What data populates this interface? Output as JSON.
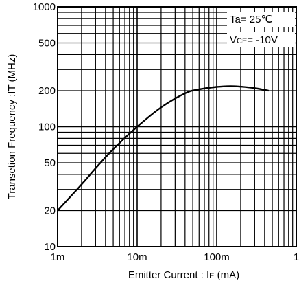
{
  "chart_data": {
    "type": "line",
    "xlabel": "Emitter Current : I",
    "xlabel_sub": "E",
    "xlabel_unit": " (mA)",
    "ylabel": "Transetion Frequency :fT (MHz)",
    "xscale": "log",
    "yscale": "log",
    "xlim_mA": [
      1,
      1000
    ],
    "ylim": [
      10,
      1000
    ],
    "grid": true,
    "x_ticks": [
      {
        "value": 1,
        "label": "1m"
      },
      {
        "value": 10,
        "label": "10m"
      },
      {
        "value": 100,
        "label": "100m"
      },
      {
        "value": 1000,
        "label": "1"
      }
    ],
    "y_ticks": [
      {
        "value": 10,
        "label": "10"
      },
      {
        "value": 20,
        "label": "20"
      },
      {
        "value": 50,
        "label": "50"
      },
      {
        "value": 100,
        "label": "100"
      },
      {
        "value": 200,
        "label": "200"
      },
      {
        "value": 500,
        "label": "500"
      },
      {
        "value": 1000,
        "label": "1000"
      }
    ],
    "annotations": {
      "ta": "Ta= 25℃",
      "vce_prefix": "V",
      "vce_sub": "CE",
      "vce_value": "= -10V"
    },
    "series": [
      {
        "x_mA": [
          1,
          2,
          3,
          5,
          10,
          20,
          40,
          60,
          100,
          150,
          200,
          300,
          450
        ],
        "y_MHz": [
          20,
          33,
          45,
          65,
          100,
          145,
          190,
          205,
          215,
          218,
          216,
          210,
          200
        ]
      }
    ]
  }
}
